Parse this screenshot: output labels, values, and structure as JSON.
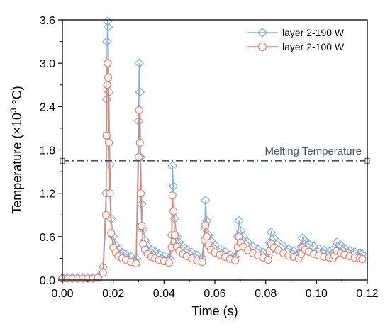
{
  "chart_data": {
    "type": "line",
    "xlabel": "Time (s)",
    "ylabel_prefix": "Temperature (×10",
    "ylabel_sup": "3",
    "ylabel_suffix": " °C)",
    "xlim": [
      0.0,
      0.12
    ],
    "ylim": [
      0.0,
      3.6
    ],
    "xticks": [
      "0.00",
      "0.02",
      "0.04",
      "0.06",
      "0.08",
      "0.10",
      "0.12"
    ],
    "yticks": [
      "0.0",
      "0.6",
      "1.2",
      "1.8",
      "2.4",
      "3.0",
      "3.6"
    ],
    "grid": false,
    "legend_position": "top-right",
    "annotation": {
      "text": "Melting Temperature",
      "y": 1.65
    },
    "series": [
      {
        "name": "layer 2-190 W",
        "color": "#88aee0",
        "marker": "diamond",
        "x": [
          0.0,
          0.002,
          0.004,
          0.006,
          0.008,
          0.01,
          0.012,
          0.014,
          0.016,
          0.0172,
          0.0174,
          0.0176,
          0.0178,
          0.018,
          0.0183,
          0.0187,
          0.0192,
          0.02,
          0.021,
          0.022,
          0.0235,
          0.025,
          0.027,
          0.029,
          0.03,
          0.0302,
          0.0305,
          0.0308,
          0.0312,
          0.0318,
          0.0325,
          0.0335,
          0.035,
          0.0365,
          0.038,
          0.04,
          0.042,
          0.043,
          0.0433,
          0.0437,
          0.0442,
          0.045,
          0.046,
          0.0475,
          0.049,
          0.051,
          0.053,
          0.055,
          0.056,
          0.0563,
          0.0568,
          0.0575,
          0.0585,
          0.06,
          0.062,
          0.064,
          0.066,
          0.068,
          0.069,
          0.0695,
          0.0702,
          0.0712,
          0.073,
          0.075,
          0.077,
          0.079,
          0.081,
          0.0815,
          0.0822,
          0.0832,
          0.085,
          0.087,
          0.089,
          0.091,
          0.093,
          0.094,
          0.0945,
          0.0955,
          0.097,
          0.099,
          0.101,
          0.103,
          0.105,
          0.1065,
          0.107,
          0.108,
          0.1095,
          0.111,
          0.113,
          0.115,
          0.117,
          0.118
        ],
        "y": [
          0.03,
          0.03,
          0.03,
          0.03,
          0.03,
          0.03,
          0.03,
          0.04,
          0.18,
          1.2,
          2.5,
          3.3,
          3.58,
          3.5,
          2.6,
          1.6,
          0.85,
          0.6,
          0.48,
          0.42,
          0.38,
          0.35,
          0.32,
          0.3,
          2.2,
          3.0,
          2.6,
          1.7,
          1.05,
          0.7,
          0.55,
          0.47,
          0.42,
          0.39,
          0.36,
          0.33,
          0.3,
          0.62,
          1.58,
          1.3,
          0.85,
          0.6,
          0.52,
          0.46,
          0.42,
          0.38,
          0.34,
          0.31,
          0.72,
          1.1,
          0.82,
          0.62,
          0.54,
          0.48,
          0.43,
          0.39,
          0.35,
          0.32,
          0.6,
          0.82,
          0.68,
          0.6,
          0.52,
          0.46,
          0.42,
          0.38,
          0.34,
          0.52,
          0.66,
          0.58,
          0.52,
          0.47,
          0.43,
          0.4,
          0.37,
          0.46,
          0.58,
          0.54,
          0.5,
          0.46,
          0.43,
          0.41,
          0.39,
          0.37,
          0.44,
          0.52,
          0.48,
          0.44,
          0.41,
          0.39,
          0.37,
          0.36
        ]
      },
      {
        "name": "layer 2-100 W",
        "color": "#e8836a",
        "marker": "circle",
        "x": [
          0.0,
          0.002,
          0.004,
          0.006,
          0.008,
          0.01,
          0.012,
          0.014,
          0.016,
          0.0172,
          0.0174,
          0.0176,
          0.0178,
          0.018,
          0.0183,
          0.0187,
          0.0192,
          0.02,
          0.021,
          0.022,
          0.0235,
          0.025,
          0.027,
          0.029,
          0.03,
          0.0302,
          0.0305,
          0.0308,
          0.0312,
          0.0318,
          0.0325,
          0.0335,
          0.035,
          0.0365,
          0.038,
          0.04,
          0.042,
          0.043,
          0.0433,
          0.0437,
          0.0442,
          0.045,
          0.046,
          0.0475,
          0.049,
          0.051,
          0.053,
          0.055,
          0.056,
          0.0563,
          0.0568,
          0.0575,
          0.0585,
          0.06,
          0.062,
          0.064,
          0.066,
          0.068,
          0.069,
          0.0695,
          0.0702,
          0.0712,
          0.073,
          0.075,
          0.077,
          0.079,
          0.081,
          0.0815,
          0.0822,
          0.0832,
          0.085,
          0.087,
          0.089,
          0.091,
          0.093,
          0.094,
          0.0945,
          0.0955,
          0.097,
          0.099,
          0.101,
          0.103,
          0.105,
          0.1065,
          0.107,
          0.108,
          0.1095,
          0.111,
          0.113,
          0.115,
          0.117,
          0.118
        ],
        "y": [
          0.02,
          0.02,
          0.02,
          0.02,
          0.02,
          0.02,
          0.02,
          0.03,
          0.1,
          0.9,
          2.0,
          2.7,
          3.0,
          2.8,
          1.9,
          1.2,
          0.65,
          0.45,
          0.38,
          0.33,
          0.3,
          0.28,
          0.25,
          0.23,
          1.7,
          2.35,
          1.9,
          1.2,
          0.75,
          0.5,
          0.42,
          0.36,
          0.32,
          0.3,
          0.28,
          0.26,
          0.24,
          0.45,
          1.17,
          0.95,
          0.62,
          0.46,
          0.4,
          0.36,
          0.33,
          0.3,
          0.27,
          0.25,
          0.55,
          0.76,
          0.6,
          0.48,
          0.42,
          0.38,
          0.35,
          0.32,
          0.29,
          0.27,
          0.45,
          0.6,
          0.52,
          0.46,
          0.41,
          0.37,
          0.34,
          0.31,
          0.28,
          0.4,
          0.5,
          0.45,
          0.41,
          0.37,
          0.34,
          0.32,
          0.3,
          0.36,
          0.45,
          0.42,
          0.39,
          0.36,
          0.34,
          0.32,
          0.31,
          0.3,
          0.34,
          0.4,
          0.37,
          0.35,
          0.33,
          0.31,
          0.3,
          0.29
        ]
      }
    ]
  }
}
